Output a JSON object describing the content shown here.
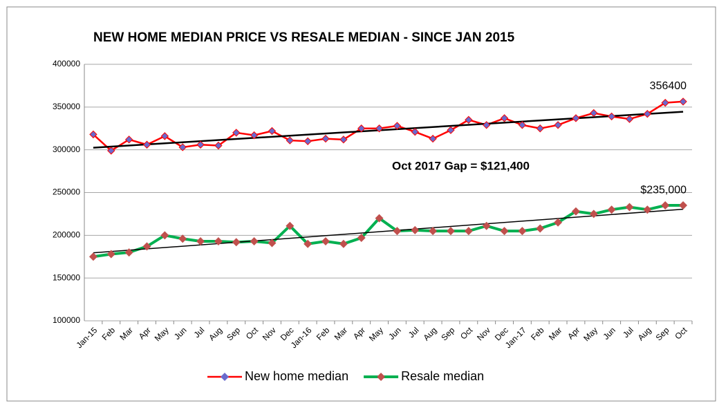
{
  "chart_data": {
    "type": "line",
    "title": "NEW HOME MEDIAN PRICE VS RESALE MEDIAN  - SINCE JAN  2015",
    "annotations": [
      "Oct 2017  Gap = $121,400"
    ],
    "categories": [
      "Jan-15",
      "Feb",
      "Mar",
      "Apr",
      "May",
      "Jun",
      "Jul",
      "Aug",
      "Sep",
      "Oct",
      "Nov",
      "Dec",
      "Jan-16",
      "Feb",
      "Mar",
      "Apr",
      "May",
      "Jun",
      "Jul",
      "Aug",
      "Sep",
      "Oct",
      "Nov",
      "Dec",
      "Jan-17",
      "Feb",
      "Mar",
      "Apr",
      "May",
      "Jun",
      "Jul",
      "Aug",
      "Sep",
      "Oct"
    ],
    "series": [
      {
        "name": "New home median",
        "color": "#ff0000",
        "marker_color": "#6a6acd",
        "values": [
          318000,
          299000,
          312000,
          306000,
          316000,
          303000,
          306000,
          305000,
          320000,
          317000,
          322000,
          311000,
          310000,
          313000,
          312000,
          325000,
          325000,
          328000,
          321000,
          313000,
          323000,
          335000,
          329000,
          337000,
          329000,
          325000,
          329000,
          337000,
          343000,
          339000,
          336000,
          342000,
          355000,
          356400
        ],
        "value_labels": [
          null,
          null,
          null,
          null,
          null,
          null,
          null,
          null,
          null,
          null,
          null,
          null,
          null,
          null,
          null,
          null,
          null,
          null,
          null,
          null,
          null,
          null,
          null,
          null,
          null,
          null,
          null,
          null,
          null,
          null,
          null,
          null,
          null,
          "356400"
        ],
        "trend": [
          302500,
          344500
        ],
        "trend_color": "#000000"
      },
      {
        "name": "Resale median",
        "color": "#00b050",
        "marker_color": "#c0504d",
        "values": [
          175000,
          178000,
          180000,
          187000,
          200000,
          196000,
          193000,
          193000,
          192000,
          193000,
          191000,
          211000,
          190000,
          193000,
          190000,
          197000,
          220000,
          205000,
          206000,
          205000,
          205000,
          205000,
          211000,
          205000,
          205000,
          208000,
          215000,
          228000,
          225000,
          230000,
          233000,
          230000,
          235000,
          235000
        ],
        "value_labels": [
          null,
          null,
          null,
          null,
          null,
          null,
          null,
          null,
          null,
          null,
          null,
          null,
          null,
          null,
          null,
          null,
          null,
          null,
          null,
          null,
          null,
          null,
          null,
          null,
          null,
          null,
          null,
          null,
          null,
          null,
          null,
          null,
          null,
          "$235,000"
        ],
        "trend": [
          179500,
          230500
        ],
        "trend_color": "#000000"
      }
    ],
    "ylim": [
      100000,
      400000
    ],
    "yticks": [
      100000,
      150000,
      200000,
      250000,
      300000,
      350000,
      400000
    ],
    "grid": true,
    "legend": "bottom"
  }
}
